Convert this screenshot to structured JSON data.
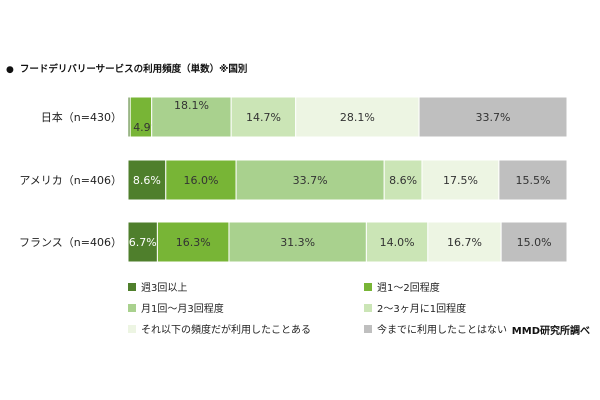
{
  "chart_data": {
    "type": "bar",
    "orientation": "horizontal",
    "stacked": true,
    "title_marker": "●",
    "title": "フードデリバリーサービスの利用頻度（単数）※国別",
    "categories": [
      "日本（n=430）",
      "アメリカ（n=406）",
      "フランス（n=406）"
    ],
    "unit": "%",
    "xlim": [
      0,
      100
    ],
    "grid": false,
    "legend": "bottom",
    "series": [
      {
        "name": "週3回以上",
        "color": "#4f7f2c",
        "values": [
          0.5,
          8.6,
          6.7
        ]
      },
      {
        "name": "週1～2回程度",
        "color": "#78b536",
        "values": [
          4.9,
          16.0,
          16.3
        ]
      },
      {
        "name": "月1回～月3回程度",
        "color": "#a9d18e",
        "values": [
          18.1,
          33.7,
          31.3
        ]
      },
      {
        "name": "2～3ヶ月に1回程度",
        "color": "#cbe5b6",
        "values": [
          14.7,
          8.6,
          14.0
        ]
      },
      {
        "name": "それ以下の頻度だが利用したことある",
        "color": "#edf5e3",
        "values": [
          28.1,
          17.5,
          16.7
        ]
      },
      {
        "name": "今までに利用したことはない",
        "color": "#bfbfbf",
        "values": [
          33.7,
          15.5,
          15.0
        ]
      }
    ],
    "source": "MMD研究所調べ"
  }
}
